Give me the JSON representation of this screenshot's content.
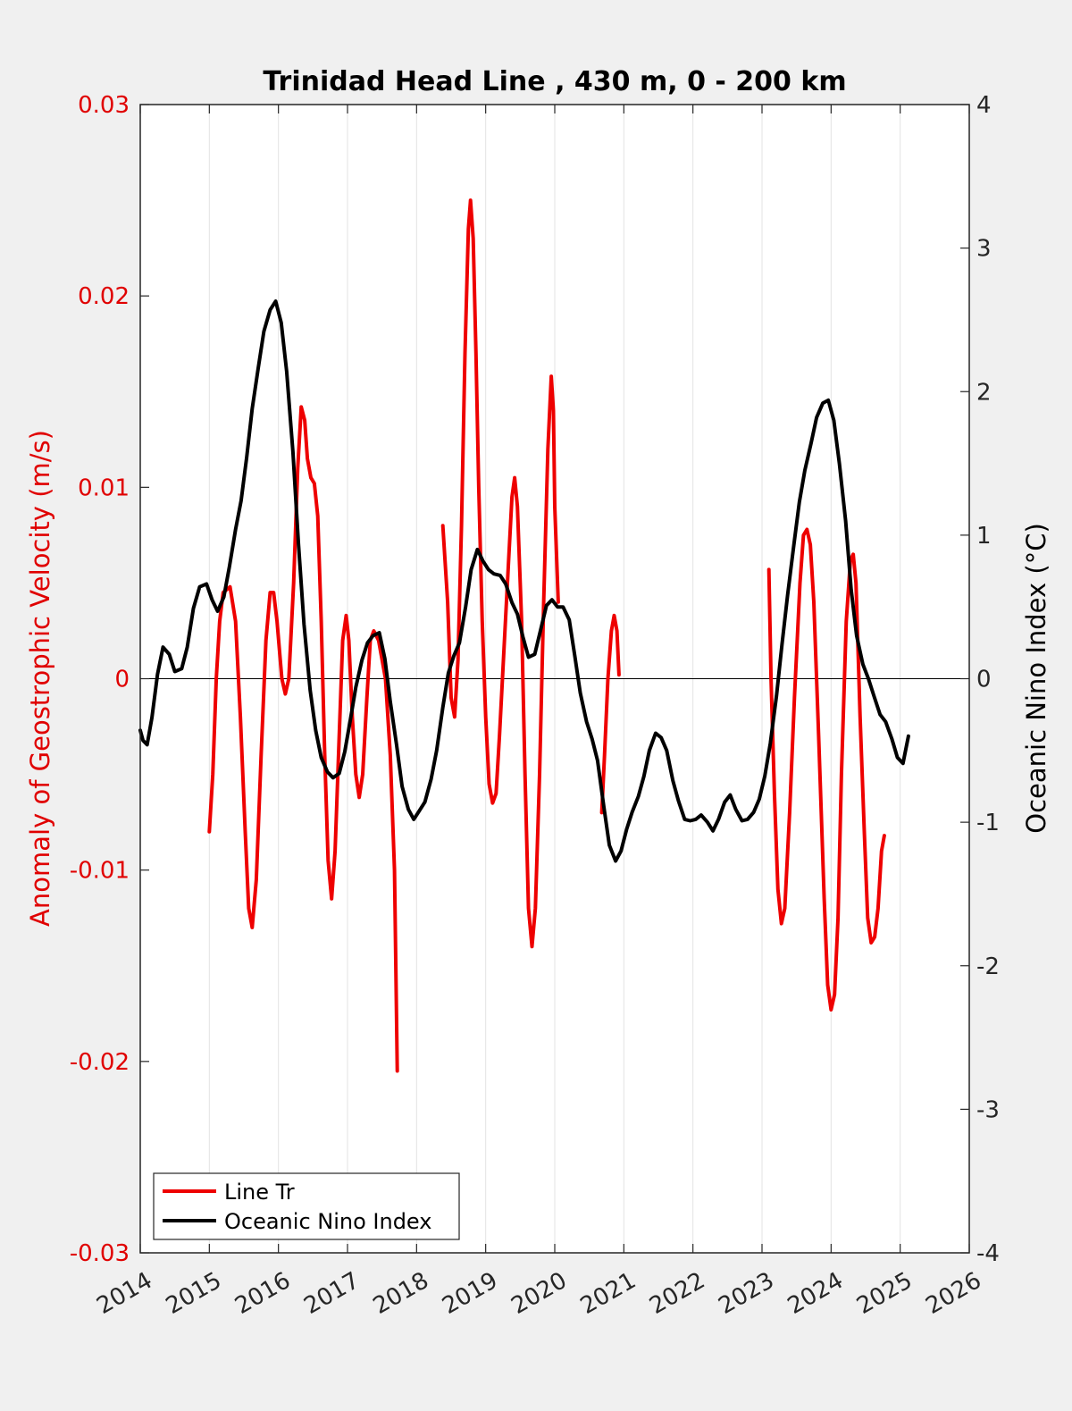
{
  "chart_data": {
    "type": "line",
    "title": "Trinidad Head Line , 430 m, 0 - 200 km",
    "xlabel": "",
    "ylabel_left": "Anomaly of Geostrophic Velocity (m/s)",
    "ylabel_right": "Oceanic Nino Index (°C)",
    "xlim": [
      2014,
      2026
    ],
    "ylim_left": [
      -0.03,
      0.03
    ],
    "ylim_right": [
      -4,
      4
    ],
    "x_ticks": [
      "2014",
      "2015",
      "2016",
      "2017",
      "2018",
      "2019",
      "2020",
      "2021",
      "2022",
      "2023",
      "2024",
      "2025",
      "2026"
    ],
    "y_ticks_left": [
      "-0.03",
      "-0.02",
      "-0.01",
      "0",
      "0.01",
      "0.02",
      "0.03"
    ],
    "y_ticks_right": [
      "-4",
      "-3",
      "-2",
      "-1",
      "0",
      "1",
      "2",
      "3",
      "4"
    ],
    "grid": "vertical",
    "legend_position": "bottom-left",
    "colors": {
      "left_axis": "#e00000",
      "series_red": "#ee0000",
      "series_black": "#000000",
      "axis": "#262626"
    },
    "series": [
      {
        "name": "Line Tr",
        "axis": "left",
        "color": "#ee0000",
        "segments": [
          [
            [
              2015.0,
              -0.008
            ],
            [
              2015.05,
              -0.005
            ],
            [
              2015.1,
              0.0
            ],
            [
              2015.15,
              0.003
            ],
            [
              2015.2,
              0.0045
            ],
            [
              2015.3,
              0.0048
            ],
            [
              2015.38,
              0.003
            ],
            [
              2015.45,
              -0.002
            ],
            [
              2015.52,
              -0.008
            ],
            [
              2015.57,
              -0.012
            ],
            [
              2015.62,
              -0.013
            ],
            [
              2015.68,
              -0.0105
            ],
            [
              2015.75,
              -0.004
            ],
            [
              2015.82,
              0.002
            ],
            [
              2015.88,
              0.0045
            ],
            [
              2015.93,
              0.0045
            ],
            [
              2015.98,
              0.003
            ],
            [
              2016.05,
              0.0
            ],
            [
              2016.1,
              -0.0008
            ],
            [
              2016.15,
              0.0
            ],
            [
              2016.22,
              0.005
            ],
            [
              2016.28,
              0.011
            ],
            [
              2016.33,
              0.0142
            ],
            [
              2016.38,
              0.0135
            ],
            [
              2016.42,
              0.0115
            ],
            [
              2016.47,
              0.0105
            ],
            [
              2016.52,
              0.0102
            ],
            [
              2016.57,
              0.0085
            ],
            [
              2016.62,
              0.003
            ],
            [
              2016.67,
              -0.004
            ],
            [
              2016.72,
              -0.0095
            ],
            [
              2016.77,
              -0.0115
            ],
            [
              2016.82,
              -0.009
            ],
            [
              2016.88,
              -0.003
            ],
            [
              2016.93,
              0.002
            ],
            [
              2016.98,
              0.0033
            ],
            [
              2017.02,
              0.002
            ],
            [
              2017.07,
              -0.002
            ],
            [
              2017.12,
              -0.005
            ],
            [
              2017.17,
              -0.0062
            ],
            [
              2017.22,
              -0.005
            ],
            [
              2017.28,
              -0.001
            ],
            [
              2017.33,
              0.002
            ],
            [
              2017.38,
              0.0025
            ],
            [
              2017.45,
              0.002
            ],
            [
              2017.55,
              0.0
            ],
            [
              2017.62,
              -0.004
            ],
            [
              2017.68,
              -0.01
            ],
            [
              2017.72,
              -0.0205
            ]
          ],
          [
            [
              2018.38,
              0.008
            ],
            [
              2018.45,
              0.004
            ],
            [
              2018.5,
              -0.001
            ],
            [
              2018.55,
              -0.002
            ],
            [
              2018.6,
              0.001
            ],
            [
              2018.65,
              0.008
            ],
            [
              2018.7,
              0.017
            ],
            [
              2018.75,
              0.0235
            ],
            [
              2018.78,
              0.025
            ],
            [
              2018.82,
              0.023
            ],
            [
              2018.86,
              0.017
            ],
            [
              2018.9,
              0.01
            ],
            [
              2018.95,
              0.003
            ],
            [
              2019.0,
              -0.002
            ],
            [
              2019.05,
              -0.0055
            ],
            [
              2019.1,
              -0.0065
            ],
            [
              2019.15,
              -0.006
            ],
            [
              2019.2,
              -0.003
            ],
            [
              2019.3,
              0.004
            ],
            [
              2019.38,
              0.0095
            ],
            [
              2019.42,
              0.0105
            ],
            [
              2019.46,
              0.009
            ],
            [
              2019.52,
              0.003
            ],
            [
              2019.57,
              -0.005
            ],
            [
              2019.62,
              -0.012
            ],
            [
              2019.67,
              -0.014
            ],
            [
              2019.72,
              -0.012
            ],
            [
              2019.78,
              -0.005
            ],
            [
              2019.84,
              0.004
            ],
            [
              2019.9,
              0.012
            ],
            [
              2019.95,
              0.0158
            ],
            [
              2019.98,
              0.014
            ],
            [
              2020.0,
              0.009
            ],
            [
              2020.05,
              0.004
            ]
          ],
          [
            [
              2020.68,
              -0.007
            ],
            [
              2020.72,
              -0.004
            ],
            [
              2020.77,
              0.0
            ],
            [
              2020.82,
              0.0025
            ],
            [
              2020.86,
              0.0033
            ],
            [
              2020.9,
              0.0025
            ],
            [
              2020.93,
              0.0002
            ]
          ],
          [
            [
              2023.1,
              0.0057
            ],
            [
              2023.13,
              0.0
            ],
            [
              2023.18,
              -0.006
            ],
            [
              2023.23,
              -0.011
            ],
            [
              2023.28,
              -0.0128
            ],
            [
              2023.33,
              -0.012
            ],
            [
              2023.4,
              -0.007
            ],
            [
              2023.47,
              -0.001
            ],
            [
              2023.55,
              0.005
            ],
            [
              2023.6,
              0.0075
            ],
            [
              2023.65,
              0.0078
            ],
            [
              2023.7,
              0.007
            ],
            [
              2023.75,
              0.004
            ],
            [
              2023.82,
              -0.003
            ],
            [
              2023.9,
              -0.0115
            ],
            [
              2023.95,
              -0.016
            ],
            [
              2024.0,
              -0.0173
            ],
            [
              2024.05,
              -0.0165
            ],
            [
              2024.1,
              -0.0125
            ],
            [
              2024.15,
              -0.005
            ],
            [
              2024.22,
              0.003
            ],
            [
              2024.28,
              0.0062
            ],
            [
              2024.32,
              0.0065
            ],
            [
              2024.36,
              0.005
            ],
            [
              2024.42,
              -0.002
            ],
            [
              2024.48,
              -0.008
            ],
            [
              2024.53,
              -0.0125
            ],
            [
              2024.58,
              -0.0138
            ],
            [
              2024.63,
              -0.0135
            ],
            [
              2024.68,
              -0.012
            ],
            [
              2024.73,
              -0.009
            ],
            [
              2024.77,
              -0.0082
            ]
          ]
        ]
      },
      {
        "name": "Oceanic Nino Index",
        "axis": "right",
        "color": "#000000",
        "points": [
          [
            2014.0,
            -0.36
          ],
          [
            2014.04,
            -0.43
          ],
          [
            2014.1,
            -0.46
          ],
          [
            2014.17,
            -0.27
          ],
          [
            2014.25,
            0.03
          ],
          [
            2014.33,
            0.22
          ],
          [
            2014.42,
            0.17
          ],
          [
            2014.5,
            0.05
          ],
          [
            2014.6,
            0.07
          ],
          [
            2014.68,
            0.22
          ],
          [
            2014.77,
            0.49
          ],
          [
            2014.86,
            0.64
          ],
          [
            2014.96,
            0.66
          ],
          [
            2015.04,
            0.55
          ],
          [
            2015.12,
            0.47
          ],
          [
            2015.21,
            0.57
          ],
          [
            2015.29,
            0.78
          ],
          [
            2015.38,
            1.04
          ],
          [
            2015.46,
            1.24
          ],
          [
            2015.54,
            1.54
          ],
          [
            2015.62,
            1.88
          ],
          [
            2015.71,
            2.17
          ],
          [
            2015.79,
            2.42
          ],
          [
            2015.88,
            2.57
          ],
          [
            2015.96,
            2.63
          ],
          [
            2016.04,
            2.48
          ],
          [
            2016.12,
            2.14
          ],
          [
            2016.21,
            1.58
          ],
          [
            2016.29,
            0.94
          ],
          [
            2016.37,
            0.38
          ],
          [
            2016.46,
            -0.08
          ],
          [
            2016.54,
            -0.36
          ],
          [
            2016.62,
            -0.55
          ],
          [
            2016.71,
            -0.65
          ],
          [
            2016.79,
            -0.69
          ],
          [
            2016.88,
            -0.66
          ],
          [
            2016.96,
            -0.51
          ],
          [
            2017.04,
            -0.29
          ],
          [
            2017.12,
            -0.06
          ],
          [
            2017.21,
            0.13
          ],
          [
            2017.29,
            0.25
          ],
          [
            2017.37,
            0.3
          ],
          [
            2017.46,
            0.32
          ],
          [
            2017.54,
            0.14
          ],
          [
            2017.62,
            -0.16
          ],
          [
            2017.71,
            -0.46
          ],
          [
            2017.79,
            -0.75
          ],
          [
            2017.88,
            -0.91
          ],
          [
            2017.96,
            -0.98
          ],
          [
            2018.04,
            -0.92
          ],
          [
            2018.12,
            -0.86
          ],
          [
            2018.21,
            -0.7
          ],
          [
            2018.29,
            -0.5
          ],
          [
            2018.38,
            -0.2
          ],
          [
            2018.46,
            0.04
          ],
          [
            2018.54,
            0.16
          ],
          [
            2018.62,
            0.25
          ],
          [
            2018.71,
            0.5
          ],
          [
            2018.79,
            0.76
          ],
          [
            2018.88,
            0.9
          ],
          [
            2018.96,
            0.82
          ],
          [
            2019.04,
            0.76
          ],
          [
            2019.12,
            0.73
          ],
          [
            2019.21,
            0.72
          ],
          [
            2019.29,
            0.66
          ],
          [
            2019.38,
            0.53
          ],
          [
            2019.46,
            0.45
          ],
          [
            2019.54,
            0.29
          ],
          [
            2019.62,
            0.15
          ],
          [
            2019.71,
            0.17
          ],
          [
            2019.79,
            0.33
          ],
          [
            2019.88,
            0.51
          ],
          [
            2019.96,
            0.55
          ],
          [
            2020.04,
            0.5
          ],
          [
            2020.12,
            0.5
          ],
          [
            2020.21,
            0.41
          ],
          [
            2020.29,
            0.16
          ],
          [
            2020.37,
            -0.1
          ],
          [
            2020.46,
            -0.3
          ],
          [
            2020.54,
            -0.42
          ],
          [
            2020.62,
            -0.57
          ],
          [
            2020.71,
            -0.89
          ],
          [
            2020.79,
            -1.16
          ],
          [
            2020.88,
            -1.27
          ],
          [
            2020.96,
            -1.2
          ],
          [
            2021.04,
            -1.05
          ],
          [
            2021.12,
            -0.93
          ],
          [
            2021.21,
            -0.82
          ],
          [
            2021.29,
            -0.68
          ],
          [
            2021.37,
            -0.5
          ],
          [
            2021.46,
            -0.38
          ],
          [
            2021.54,
            -0.41
          ],
          [
            2021.62,
            -0.5
          ],
          [
            2021.71,
            -0.71
          ],
          [
            2021.79,
            -0.85
          ],
          [
            2021.88,
            -0.98
          ],
          [
            2021.96,
            -0.99
          ],
          [
            2022.04,
            -0.98
          ],
          [
            2022.12,
            -0.95
          ],
          [
            2022.21,
            -1.0
          ],
          [
            2022.29,
            -1.06
          ],
          [
            2022.37,
            -0.98
          ],
          [
            2022.46,
            -0.86
          ],
          [
            2022.54,
            -0.81
          ],
          [
            2022.62,
            -0.91
          ],
          [
            2022.71,
            -0.99
          ],
          [
            2022.79,
            -0.98
          ],
          [
            2022.88,
            -0.93
          ],
          [
            2022.96,
            -0.84
          ],
          [
            2023.04,
            -0.68
          ],
          [
            2023.12,
            -0.45
          ],
          [
            2023.21,
            -0.12
          ],
          [
            2023.29,
            0.24
          ],
          [
            2023.37,
            0.58
          ],
          [
            2023.46,
            0.93
          ],
          [
            2023.54,
            1.23
          ],
          [
            2023.62,
            1.45
          ],
          [
            2023.71,
            1.64
          ],
          [
            2023.79,
            1.82
          ],
          [
            2023.88,
            1.92
          ],
          [
            2023.96,
            1.94
          ],
          [
            2024.04,
            1.8
          ],
          [
            2024.12,
            1.5
          ],
          [
            2024.21,
            1.1
          ],
          [
            2024.29,
            0.62
          ],
          [
            2024.37,
            0.3
          ],
          [
            2024.46,
            0.1
          ],
          [
            2024.54,
            0.0
          ],
          [
            2024.62,
            -0.12
          ],
          [
            2024.71,
            -0.25
          ],
          [
            2024.79,
            -0.3
          ],
          [
            2024.88,
            -0.42
          ],
          [
            2024.96,
            -0.55
          ],
          [
            2025.04,
            -0.59
          ],
          [
            2025.12,
            -0.4
          ]
        ]
      }
    ],
    "legend": [
      "Line Tr",
      "Oceanic Nino Index"
    ]
  }
}
